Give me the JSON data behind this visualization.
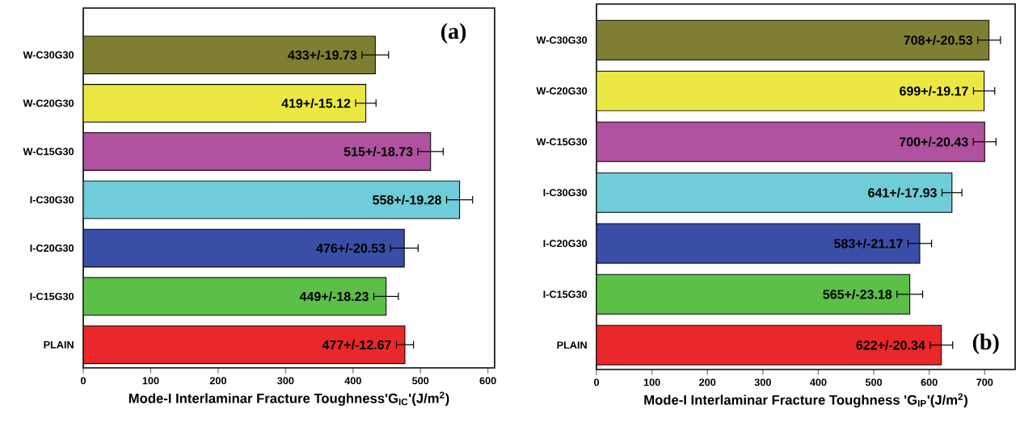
{
  "chart_data": [
    {
      "type": "bar",
      "orientation": "horizontal",
      "categories": [
        "W-C30G30",
        "W-C20G30",
        "W-C15G30",
        "I-C30G30",
        "I-C20G30",
        "I-C15G30",
        "PLAIN"
      ],
      "values": [
        433,
        419,
        515,
        558,
        476,
        449,
        477
      ],
      "errors": [
        19.73,
        15.12,
        18.73,
        19.28,
        20.53,
        18.23,
        12.67
      ],
      "value_labels": [
        "433+/-19.73",
        "419+/-15.12",
        "515+/-18.73",
        "558+/-19.28",
        "476+/-20.53",
        "449+/-18.23",
        "477+/-12.67"
      ],
      "colors": [
        "#7f7f33",
        "#ece843",
        "#b052a0",
        "#6ecdd8",
        "#3a4ea8",
        "#5bbf48",
        "#e8282a"
      ],
      "xlim": [
        0,
        610
      ],
      "xticks": [
        0,
        100,
        200,
        300,
        400,
        500,
        600
      ],
      "xlabel": "Mode-I Interlaminar Fracture Toughness'G$_{IC}$'(J/m$^{2}$)",
      "annotations": [
        "(a)"
      ]
    },
    {
      "type": "bar",
      "orientation": "horizontal",
      "categories": [
        "W-C30G30",
        "W-C20G30",
        "W-C15G30",
        "I-C30G30",
        "I-C20G30",
        "I-C15G30",
        "PLAIN"
      ],
      "values": [
        708,
        699,
        700,
        641,
        583,
        565,
        622
      ],
      "errors": [
        20.53,
        19.17,
        20.43,
        17.93,
        21.17,
        23.18,
        20.34
      ],
      "value_labels": [
        "708+/-20.53",
        "699+/-19.17",
        "700+/-20.43",
        "641+/-17.93",
        "583+/-21.17",
        "565+/-23.18",
        "622+/-20.34"
      ],
      "colors": [
        "#7f7f33",
        "#ece843",
        "#b052a0",
        "#6ecdd8",
        "#3a4ea8",
        "#5bbf48",
        "#e8282a"
      ],
      "xlim": [
        0,
        755
      ],
      "xticks": [
        0,
        100,
        200,
        300,
        400,
        500,
        600,
        700
      ],
      "xlabel": "Mode-I Interlaminar Fracture Toughness 'G$_{IP}$'(J/m$^{2}$)",
      "annotations": [
        "(b)"
      ]
    }
  ]
}
